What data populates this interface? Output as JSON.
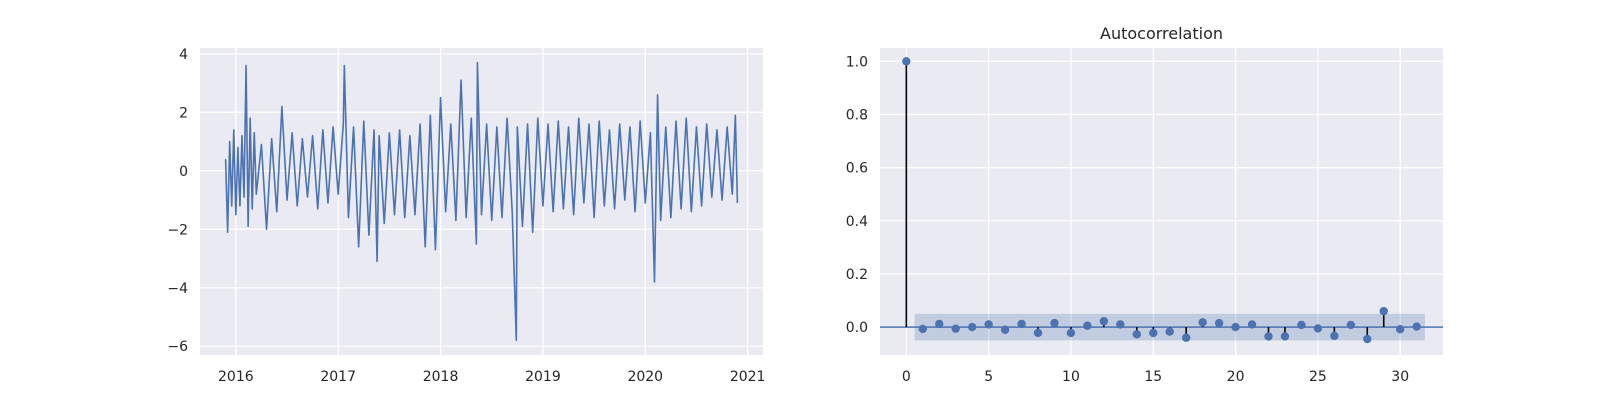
{
  "chart_data": [
    {
      "type": "line",
      "title": "",
      "xlabel": "",
      "ylabel": "",
      "xlim": [
        2015.65,
        2021.15
      ],
      "ylim": [
        -6.3,
        4.2
      ],
      "xticks": [
        2016,
        2017,
        2018,
        2019,
        2020,
        2021
      ],
      "xtick_labels": [
        "2016",
        "2017",
        "2018",
        "2019",
        "2020",
        "2021"
      ],
      "yticks": [
        -6,
        -4,
        -2,
        0,
        2,
        4
      ],
      "ytick_labels": [
        "−6",
        "−4",
        "−2",
        "0",
        "2",
        "4"
      ],
      "grid": true,
      "series": [
        {
          "color": "#4c72b0",
          "x": [
            2015.9,
            2015.92,
            2015.94,
            2015.96,
            2015.98,
            2016.0,
            2016.02,
            2016.04,
            2016.06,
            2016.08,
            2016.1,
            2016.12,
            2016.14,
            2016.16,
            2016.18,
            2016.2,
            2016.25,
            2016.3,
            2016.35,
            2016.4,
            2016.45,
            2016.5,
            2016.55,
            2016.6,
            2016.65,
            2016.7,
            2016.75,
            2016.8,
            2016.85,
            2016.9,
            2016.95,
            2017.0,
            2017.05,
            2017.06,
            2017.1,
            2017.15,
            2017.2,
            2017.25,
            2017.3,
            2017.35,
            2017.38,
            2017.4,
            2017.45,
            2017.5,
            2017.55,
            2017.6,
            2017.65,
            2017.7,
            2017.75,
            2017.8,
            2017.85,
            2017.9,
            2017.95,
            2018.0,
            2018.05,
            2018.1,
            2018.15,
            2018.2,
            2018.25,
            2018.3,
            2018.35,
            2018.36,
            2018.4,
            2018.45,
            2018.5,
            2018.55,
            2018.6,
            2018.65,
            2018.7,
            2018.74,
            2018.75,
            2018.8,
            2018.85,
            2018.9,
            2018.95,
            2019.0,
            2019.05,
            2019.1,
            2019.15,
            2019.2,
            2019.25,
            2019.3,
            2019.35,
            2019.4,
            2019.45,
            2019.5,
            2019.55,
            2019.6,
            2019.65,
            2019.7,
            2019.75,
            2019.8,
            2019.85,
            2019.9,
            2019.95,
            2020.0,
            2020.05,
            2020.09,
            2020.12,
            2020.15,
            2020.2,
            2020.25,
            2020.3,
            2020.35,
            2020.4,
            2020.45,
            2020.5,
            2020.55,
            2020.6,
            2020.65,
            2020.7,
            2020.75,
            2020.8,
            2020.85,
            2020.88,
            2020.9
          ],
          "y": [
            0.4,
            -2.1,
            1.0,
            -1.2,
            1.4,
            -1.5,
            0.8,
            -1.2,
            1.2,
            -0.9,
            3.6,
            -1.9,
            1.8,
            -1.3,
            1.3,
            -0.8,
            0.9,
            -2.0,
            1.1,
            -1.4,
            2.2,
            -1.0,
            1.3,
            -1.2,
            1.1,
            -0.9,
            1.2,
            -1.3,
            1.4,
            -1.1,
            1.5,
            -0.8,
            1.6,
            3.6,
            -1.6,
            1.5,
            -2.6,
            1.7,
            -2.2,
            1.4,
            -3.1,
            1.2,
            -1.8,
            1.3,
            -1.5,
            1.4,
            -1.6,
            1.2,
            -1.5,
            1.6,
            -2.6,
            1.9,
            -2.7,
            2.5,
            -1.4,
            1.6,
            -1.7,
            3.1,
            -1.6,
            1.8,
            -2.5,
            3.7,
            -1.5,
            1.6,
            -1.7,
            1.5,
            -1.6,
            1.8,
            -1.4,
            -5.8,
            1.5,
            -1.9,
            1.6,
            -2.1,
            1.8,
            -1.2,
            1.6,
            -1.4,
            1.7,
            -1.3,
            1.5,
            -1.5,
            1.8,
            -1.1,
            1.6,
            -1.6,
            1.7,
            -1.2,
            1.4,
            -1.3,
            1.6,
            -1.0,
            1.5,
            -1.4,
            1.7,
            -1.1,
            1.3,
            -3.8,
            2.6,
            -1.7,
            1.5,
            -1.6,
            1.7,
            -1.3,
            1.8,
            -1.4,
            1.5,
            -1.2,
            1.6,
            -0.9,
            1.4,
            -1.0,
            1.5,
            -0.8,
            1.9,
            -1.1
          ]
        }
      ]
    },
    {
      "type": "scatter",
      "title": "Autocorrelation",
      "xlabel": "",
      "ylabel": "",
      "xlim": [
        -1.6,
        32.6
      ],
      "ylim": [
        -0.105,
        1.05
      ],
      "xticks": [
        0,
        5,
        10,
        15,
        20,
        25,
        30
      ],
      "xtick_labels": [
        "0",
        "5",
        "10",
        "15",
        "20",
        "25",
        "30"
      ],
      "yticks": [
        0.0,
        0.2,
        0.4,
        0.6,
        0.8,
        1.0
      ],
      "ytick_labels": [
        "0.0",
        "0.2",
        "0.4",
        "0.6",
        "0.8",
        "1.0"
      ],
      "grid": true,
      "confidence_band": {
        "x_start": 0.5,
        "x_end": 31.5,
        "lower": -0.05,
        "upper": 0.05,
        "color": "#4c72b0"
      },
      "lags": [
        0,
        1,
        2,
        3,
        4,
        5,
        6,
        7,
        8,
        9,
        10,
        11,
        12,
        13,
        14,
        15,
        16,
        17,
        18,
        19,
        20,
        21,
        22,
        23,
        24,
        25,
        26,
        27,
        28,
        29,
        30,
        31
      ],
      "values": [
        1.0,
        -0.007,
        0.012,
        -0.006,
        0.0,
        0.01,
        -0.01,
        0.012,
        -0.022,
        0.015,
        -0.022,
        0.005,
        0.022,
        0.01,
        -0.027,
        -0.022,
        -0.017,
        -0.04,
        0.018,
        0.015,
        0.0,
        0.01,
        -0.035,
        -0.035,
        0.008,
        -0.005,
        -0.033,
        0.008,
        -0.045,
        0.06,
        -0.008,
        0.002
      ],
      "marker_color": "#4c72b0",
      "stem_color": "#000000",
      "zero_line_color": "#4c72b0"
    }
  ]
}
